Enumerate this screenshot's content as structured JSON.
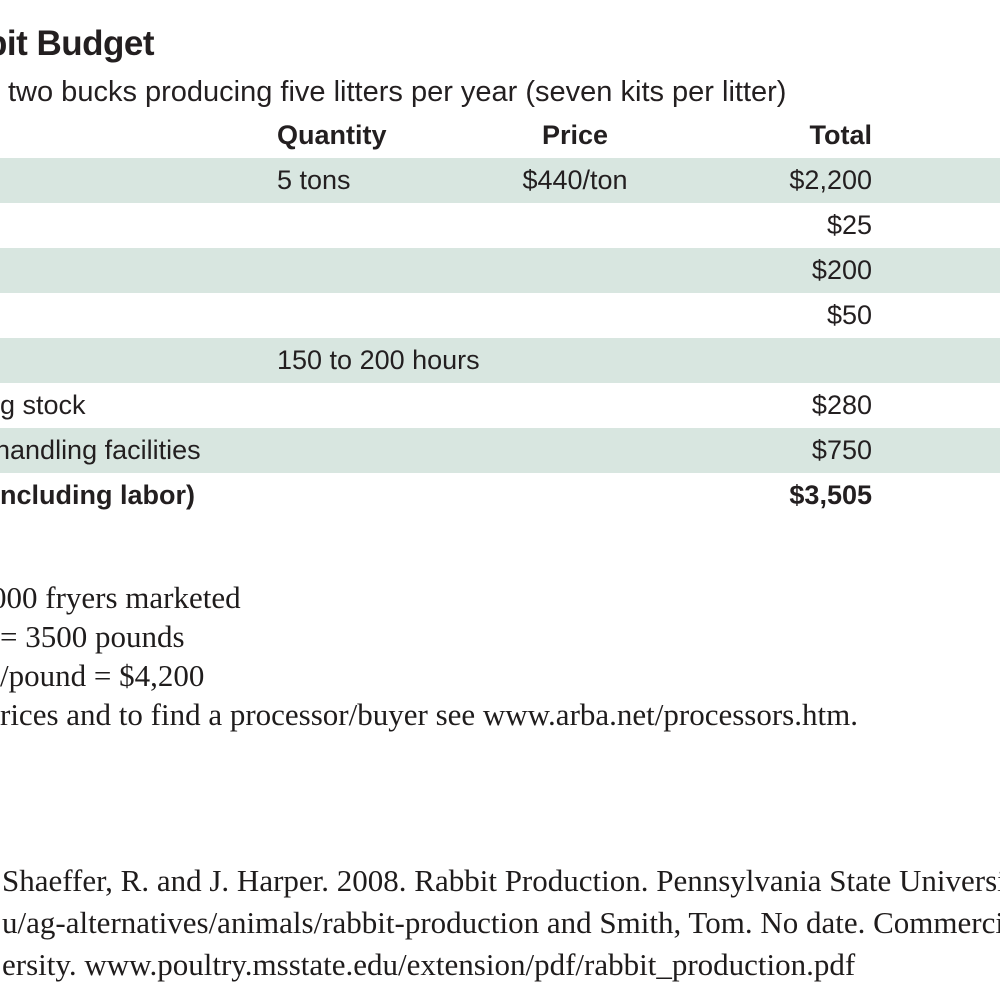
{
  "header": {
    "title": "bit Budget",
    "subtitle": "two bucks producing five litters per year (seven kits per litter)"
  },
  "table": {
    "headers": {
      "quantity": "Quantity",
      "price": "Price",
      "total": "Total"
    },
    "rows": [
      {
        "label": "",
        "quantity": "5 tons",
        "price": "$440/ton",
        "total": "$2,200"
      },
      {
        "label": "",
        "quantity": "",
        "price": "",
        "total": "$25"
      },
      {
        "label": "",
        "quantity": "",
        "price": "",
        "total": "$200"
      },
      {
        "label": "",
        "quantity": "",
        "price": "",
        "total": "$50"
      },
      {
        "label": "",
        "quantity": "150 to 200 hours",
        "price": "",
        "total": ""
      },
      {
        "label": "g stock",
        "quantity": "",
        "price": "",
        "total": "$280"
      },
      {
        "label": "handling facilities",
        "quantity": "",
        "price": "",
        "total": "$750"
      },
      {
        "label": "ncluding labor)",
        "quantity": "",
        "price": "",
        "total": "$3,505"
      }
    ],
    "row_shade_color": "#d8e6e0"
  },
  "notes": {
    "lines": [
      "000 fryers marketed",
      "= 3500 pounds",
      "/pound = $4,200",
      "rices and to find a processor/buyer see www.arba.net/processors.htm."
    ]
  },
  "citation": {
    "lines": [
      "Shaeffer, R. and J. Harper. 2008. Rabbit Production. Pennsylvania State Universi",
      "u/ag-alternatives/animals/rabbit-production and Smith, Tom. No date. Commercia",
      "ersity. www.poultry.msstate.edu/extension/pdf/rabbit_production.pdf"
    ]
  },
  "colors": {
    "row_shade": "#d8e6e0",
    "text": "#231f20"
  }
}
